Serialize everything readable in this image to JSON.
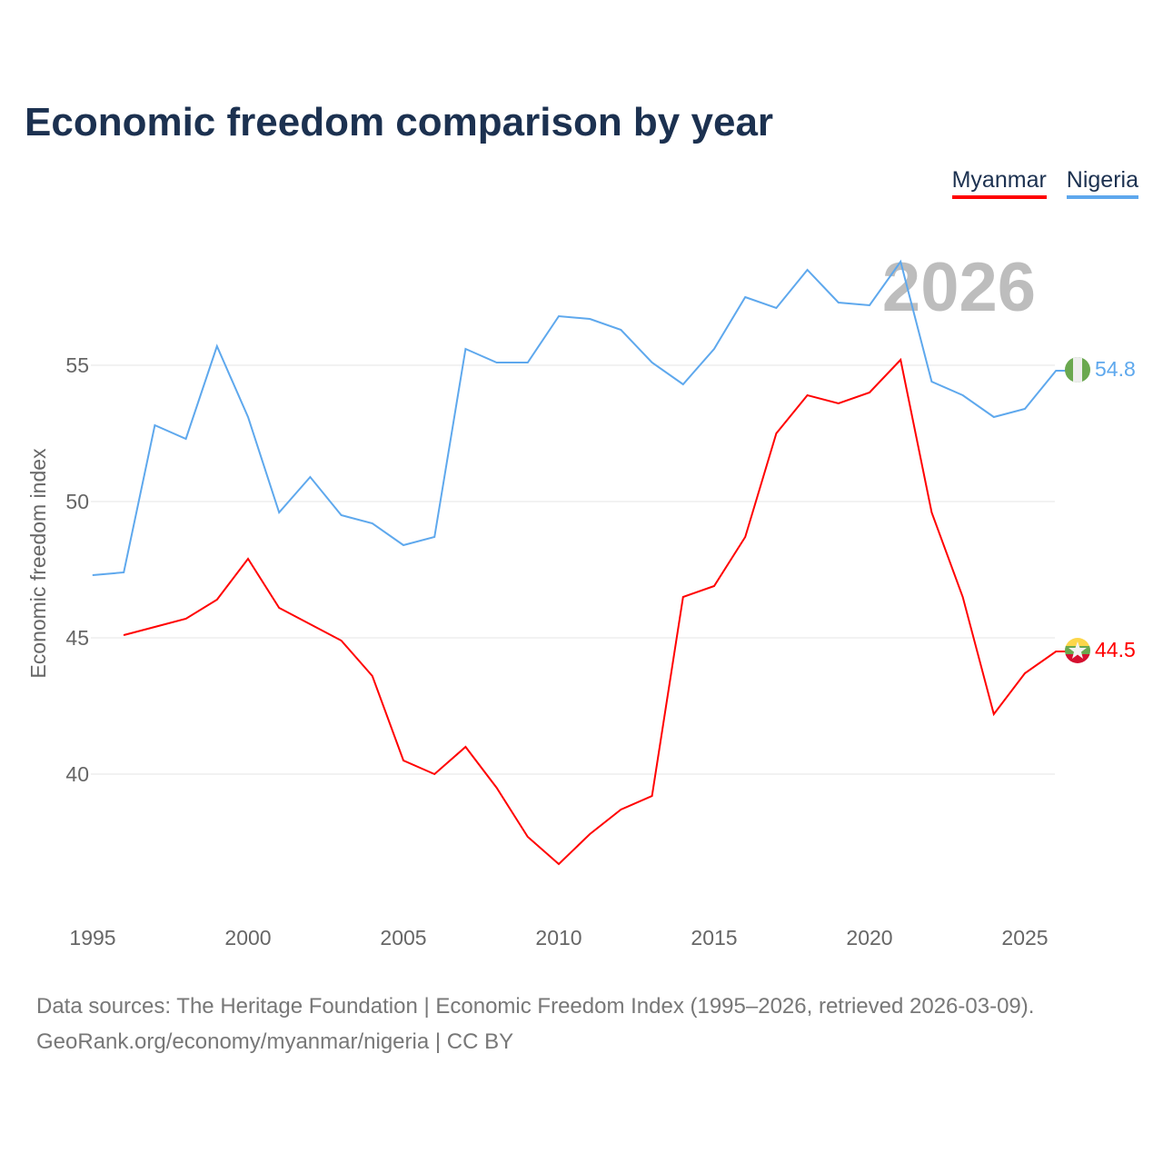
{
  "title": "Economic freedom comparison by year",
  "source_line1": "Data sources: The Heritage Foundation | Economic Freedom Index (1995–2026, retrieved 2026-03-09).",
  "source_line2": "GeoRank.org/economy/myanmar/nigeria | CC BY",
  "chart_data": {
    "type": "line",
    "title": "Economic freedom comparison by year",
    "ylabel": "Economic freedom index",
    "xlabel": "",
    "year_watermark": "2026",
    "xlim": [
      1995,
      2026
    ],
    "ylim": [
      35,
      60
    ],
    "x_ticks": [
      1995,
      2000,
      2005,
      2010,
      2015,
      2020,
      2025
    ],
    "y_ticks": [
      40,
      45,
      50,
      55
    ],
    "grid": true,
    "legend_position": "top-right",
    "series": [
      {
        "name": "Myanmar",
        "color": "#ff0000",
        "flag": "myanmar-flag",
        "end_label": "44.5",
        "x": [
          1996,
          1997,
          1998,
          1999,
          2000,
          2001,
          2002,
          2003,
          2004,
          2005,
          2006,
          2007,
          2008,
          2009,
          2010,
          2011,
          2012,
          2013,
          2014,
          2015,
          2016,
          2017,
          2018,
          2019,
          2020,
          2021,
          2022,
          2023,
          2024,
          2025,
          2026
        ],
        "values": [
          45.1,
          45.4,
          45.7,
          46.4,
          47.9,
          46.1,
          45.5,
          44.9,
          43.6,
          40.5,
          40.0,
          41.0,
          39.5,
          37.7,
          36.7,
          37.8,
          38.7,
          39.2,
          46.5,
          46.9,
          48.7,
          52.5,
          53.9,
          53.6,
          54.0,
          55.2,
          49.6,
          46.5,
          42.2,
          43.7,
          44.5
        ]
      },
      {
        "name": "Nigeria",
        "color": "#5ea8ed",
        "flag": "nigeria-flag",
        "end_label": "54.8",
        "x": [
          1995,
          1996,
          1997,
          1998,
          1999,
          2000,
          2001,
          2002,
          2003,
          2004,
          2005,
          2006,
          2007,
          2008,
          2009,
          2010,
          2011,
          2012,
          2013,
          2014,
          2015,
          2016,
          2017,
          2018,
          2019,
          2020,
          2021,
          2022,
          2023,
          2024,
          2025,
          2026
        ],
        "values": [
          47.3,
          47.4,
          52.8,
          52.3,
          55.7,
          53.1,
          49.6,
          50.9,
          49.5,
          49.2,
          48.4,
          48.7,
          55.6,
          55.1,
          55.1,
          56.8,
          56.7,
          56.3,
          55.1,
          54.3,
          55.6,
          57.5,
          57.1,
          58.5,
          57.3,
          57.2,
          58.8,
          54.4,
          53.9,
          53.1,
          53.4,
          54.8
        ]
      }
    ]
  }
}
